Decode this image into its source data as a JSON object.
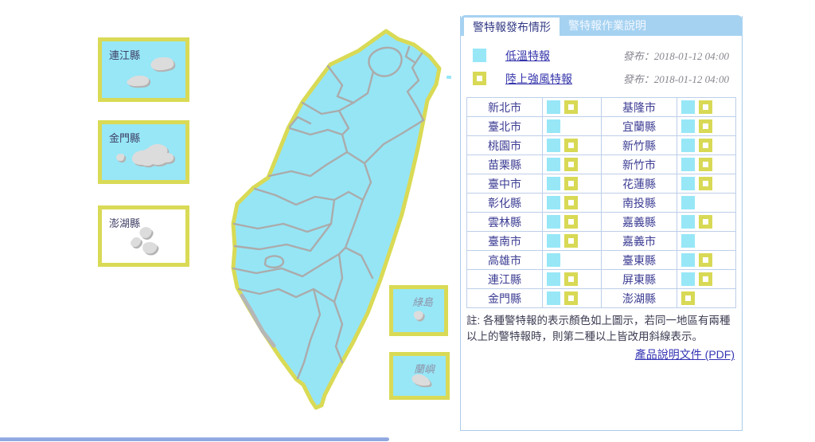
{
  "panel": {
    "tabs": [
      {
        "label": "警特報發布情形",
        "active": true
      },
      {
        "label": "警特報作業說明",
        "active": false
      }
    ],
    "legend": [
      {
        "type": "cold",
        "label": "低溫特報",
        "issued": "發布：2018-01-12 04:00"
      },
      {
        "type": "wind",
        "label": "陸上強風特報",
        "issued": "發布：2018-01-12 04:00"
      }
    ],
    "table_rows": [
      [
        {
          "name": "新北市",
          "cold": true,
          "wind": true
        },
        {
          "name": "基隆市",
          "cold": true,
          "wind": true
        }
      ],
      [
        {
          "name": "臺北市",
          "cold": true,
          "wind": false
        },
        {
          "name": "宜蘭縣",
          "cold": true,
          "wind": true
        }
      ],
      [
        {
          "name": "桃園市",
          "cold": true,
          "wind": true
        },
        {
          "name": "新竹縣",
          "cold": true,
          "wind": true
        }
      ],
      [
        {
          "name": "苗栗縣",
          "cold": true,
          "wind": true
        },
        {
          "name": "新竹市",
          "cold": true,
          "wind": true
        }
      ],
      [
        {
          "name": "臺中市",
          "cold": true,
          "wind": true
        },
        {
          "name": "花蓮縣",
          "cold": true,
          "wind": true
        }
      ],
      [
        {
          "name": "彰化縣",
          "cold": true,
          "wind": true
        },
        {
          "name": "南投縣",
          "cold": true,
          "wind": false
        }
      ],
      [
        {
          "name": "雲林縣",
          "cold": true,
          "wind": true
        },
        {
          "name": "嘉義縣",
          "cold": true,
          "wind": true
        }
      ],
      [
        {
          "name": "臺南市",
          "cold": true,
          "wind": true
        },
        {
          "name": "嘉義市",
          "cold": true,
          "wind": false
        }
      ],
      [
        {
          "name": "高雄市",
          "cold": true,
          "wind": false
        },
        {
          "name": "臺東縣",
          "cold": true,
          "wind": true
        }
      ],
      [
        {
          "name": "連江縣",
          "cold": true,
          "wind": true
        },
        {
          "name": "屏東縣",
          "cold": true,
          "wind": true
        }
      ],
      [
        {
          "name": "金門縣",
          "cold": true,
          "wind": true
        },
        {
          "name": "澎湖縣",
          "cold": false,
          "wind": true
        }
      ]
    ],
    "note": "註: 各種警特報的表示顏色如上圖示，若同一地區有兩種以上的警特報時，則第二種以上皆改用斜線表示。",
    "pdf_link": "產品說明文件 (PDF)"
  },
  "map": {
    "insets": [
      {
        "label": "連江縣"
      },
      {
        "label": "金門縣"
      },
      {
        "label": "澎湖縣"
      },
      {
        "label": "綠島"
      },
      {
        "label": "蘭嶼"
      }
    ]
  },
  "colors": {
    "cold_warning": "#97e7f7",
    "wind_warning": "#d8d955",
    "county_border": "#ababab",
    "tab_strip": "#a6d2f1",
    "county_text": "#3c3c94",
    "link": "#3434b4"
  }
}
